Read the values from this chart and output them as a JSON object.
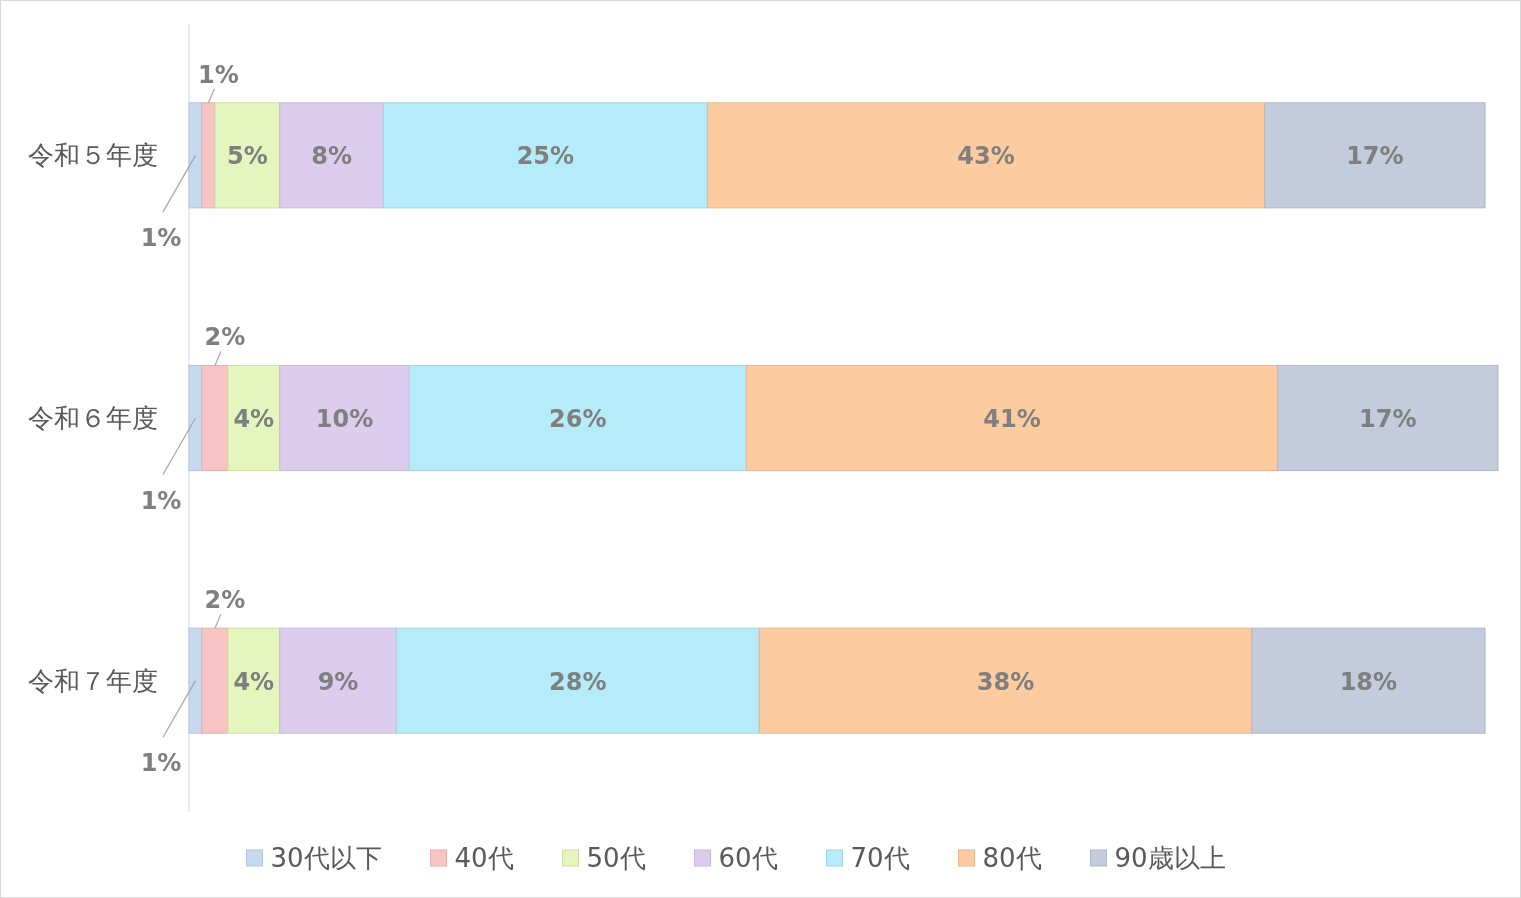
{
  "chart_data": {
    "type": "bar",
    "orientation": "horizontal",
    "stacked": true,
    "legend": "bottom",
    "categories": [
      "令和５年度",
      "令和６年度",
      "令和７年度"
    ],
    "series": [
      {
        "name": "30代以下",
        "color": "#c6d9f1",
        "values": [
          1,
          1,
          1
        ],
        "value_labels": [
          "1%",
          "1%",
          "1%"
        ]
      },
      {
        "name": "40代",
        "color": "#f8c4c4",
        "values": [
          1,
          2,
          2
        ],
        "value_labels": [
          "1%",
          "2%",
          "2%"
        ]
      },
      {
        "name": "50代",
        "color": "#e4f5bd",
        "values": [
          5,
          4,
          4
        ],
        "value_labels": [
          "5%",
          "4%",
          "4%"
        ]
      },
      {
        "name": "60代",
        "color": "#dccdef",
        "values": [
          8,
          10,
          9
        ],
        "value_labels": [
          "8%",
          "10%",
          "9%"
        ]
      },
      {
        "name": "70代",
        "color": "#b6ecfa",
        "values": [
          25,
          26,
          28
        ],
        "value_labels": [
          "25%",
          "26%",
          "28%"
        ]
      },
      {
        "name": "80代",
        "color": "#fdcba0",
        "values": [
          43,
          41,
          38
        ],
        "value_labels": [
          "43%",
          "41%",
          "38%"
        ]
      },
      {
        "name": "90歳以上",
        "color": "#c3cbdd",
        "values": [
          17,
          17,
          18
        ],
        "value_labels": [
          "17%",
          "17%",
          "18%"
        ]
      }
    ]
  }
}
